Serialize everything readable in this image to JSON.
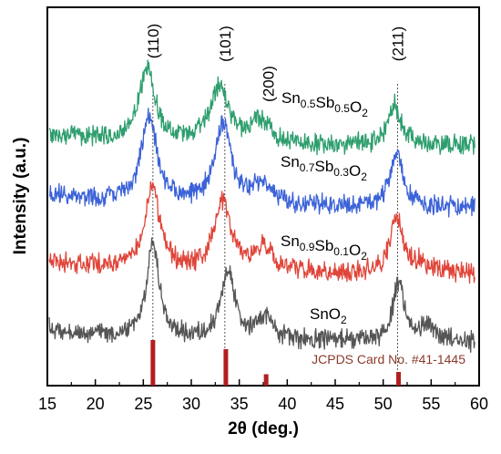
{
  "chart_data": {
    "type": "line",
    "xlabel": "2θ (deg.)",
    "ylabel": "Intensity (a.u.)",
    "xlim": [
      15,
      60
    ],
    "xticks": [
      15,
      20,
      25,
      30,
      35,
      40,
      45,
      50,
      55,
      60
    ],
    "yticks": false,
    "grid": false,
    "legend": "none",
    "peak_labels": [
      {
        "text": "(110)",
        "x": 26.0
      },
      {
        "text": "(101)",
        "x": 33.5
      },
      {
        "text": "(200)",
        "x": 38.0
      },
      {
        "text": "(211)",
        "x": 51.5
      }
    ],
    "peak_markers": [
      26.0,
      33.5,
      51.5
    ],
    "series": [
      {
        "name": "SnO2",
        "label": {
          "base1": "SnO",
          "sub1": "2",
          "base2": "",
          "sub2": "",
          "base3": "",
          "sub3": ""
        },
        "color": "#555555",
        "offset": 0,
        "baseline": 375,
        "peaks": [
          {
            "center": 26.0,
            "height": 105,
            "width": 0.8
          },
          {
            "center": 33.8,
            "height": 75,
            "width": 0.9
          },
          {
            "center": 37.8,
            "height": 25,
            "width": 1.0
          },
          {
            "center": 51.6,
            "height": 65,
            "width": 0.7
          },
          {
            "center": 54.5,
            "height": 15,
            "width": 1.0
          }
        ]
      },
      {
        "name": "Sn0.9Sb0.1O2",
        "label": {
          "base1": "Sn",
          "sub1": "0.9",
          "base2": "Sb",
          "sub2": "0.1",
          "base3": "O",
          "sub3": "2"
        },
        "color": "#e0453a",
        "offset": 1,
        "baseline": 300,
        "peaks": [
          {
            "center": 25.9,
            "height": 95,
            "width": 0.9
          },
          {
            "center": 33.3,
            "height": 75,
            "width": 1.1
          },
          {
            "center": 37.5,
            "height": 25,
            "width": 1.2
          },
          {
            "center": 51.4,
            "height": 60,
            "width": 0.8
          },
          {
            "center": 54.0,
            "height": 10,
            "width": 1.0
          }
        ]
      },
      {
        "name": "Sn0.7Sb0.3O2",
        "label": {
          "base1": "Sn",
          "sub1": "0.7",
          "base2": "Sb",
          "sub2": "0.3",
          "base3": "O",
          "sub3": "2"
        },
        "color": "#3b62d8",
        "offset": 2,
        "baseline": 227,
        "peaks": [
          {
            "center": 25.6,
            "height": 95,
            "width": 1.0
          },
          {
            "center": 33.3,
            "height": 90,
            "width": 1.0
          },
          {
            "center": 37.5,
            "height": 25,
            "width": 1.2
          },
          {
            "center": 51.4,
            "height": 60,
            "width": 0.8
          }
        ]
      },
      {
        "name": "Sn0.5Sb0.5O2",
        "label": {
          "base1": "Sn",
          "sub1": "0.5",
          "base2": "Sb",
          "sub2": "0.5",
          "base3": "O",
          "sub3": "2"
        },
        "color": "#2e9e6e",
        "offset": 3,
        "baseline": 160,
        "peaks": [
          {
            "center": 25.4,
            "height": 80,
            "width": 1.0
          },
          {
            "center": 32.9,
            "height": 60,
            "width": 1.2
          },
          {
            "center": 37.2,
            "height": 25,
            "width": 1.3
          },
          {
            "center": 51.2,
            "height": 45,
            "width": 0.8
          }
        ]
      }
    ],
    "reference": {
      "label": "JCPDS Card No. #41-1445",
      "color": "#b21f1f",
      "label_color": "#8b3a2a",
      "lines": [
        {
          "x": 26.0,
          "height": 1.0
        },
        {
          "x": 33.6,
          "height": 0.8
        },
        {
          "x": 37.8,
          "height": 0.25
        },
        {
          "x": 51.6,
          "height": 0.3
        }
      ]
    }
  }
}
